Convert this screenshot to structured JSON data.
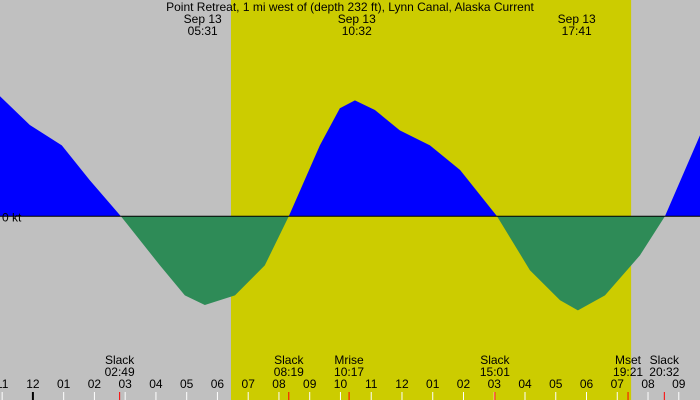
{
  "chart_data": {
    "type": "area",
    "title": "Point Retreat, 1 mi west of (depth 232 ft), Lynn Canal, Alaska Current",
    "x": [
      -1.07,
      -0.1,
      0.94,
      1.85,
      2.86,
      4.13,
      4.94,
      5.59,
      6.57,
      7.54,
      8.32,
      9.33,
      9.98,
      10.47,
      11.12,
      11.93,
      12.91,
      13.89,
      15.09,
      16.16,
      17.14,
      17.72,
      18.6,
      19.74,
      20.55,
      21.69
    ],
    "values": [
      2.0,
      1.52,
      1.18,
      0.6,
      0,
      -0.82,
      -1.32,
      -1.48,
      -1.32,
      -0.82,
      0,
      1.18,
      1.8,
      1.93,
      1.77,
      1.43,
      1.18,
      0.77,
      0,
      -0.9,
      -1.4,
      -1.57,
      -1.32,
      -0.65,
      0,
      1.35
    ],
    "flood_color": "#0000ff",
    "ebb_color": "#2e8b57",
    "background_color": "#c0c0c0",
    "daylight_color": "#cccc00",
    "daylight": [
      6.44,
      19.45
    ],
    "xlim": [
      -1.07,
      21.69
    ],
    "ylim": [
      -2.73,
      3.27
    ],
    "yticks": [
      {
        "value": 0,
        "label": "0 kt"
      }
    ],
    "xticks": [
      {
        "value": -1,
        "label": "11"
      },
      {
        "value": 0,
        "label": "12"
      },
      {
        "value": 1,
        "label": "01"
      },
      {
        "value": 2,
        "label": "02"
      },
      {
        "value": 3,
        "label": "03"
      },
      {
        "value": 4,
        "label": "04"
      },
      {
        "value": 5,
        "label": "05"
      },
      {
        "value": 6,
        "label": "06"
      },
      {
        "value": 7,
        "label": "07"
      },
      {
        "value": 8,
        "label": "08"
      },
      {
        "value": 9,
        "label": "09"
      },
      10,
      11,
      12,
      {
        "value": 13,
        "label": "01"
      },
      {
        "value": 14,
        "label": "02"
      },
      {
        "value": 15,
        "label": "03"
      },
      {
        "value": 16,
        "label": "04"
      },
      {
        "value": 17,
        "label": "05"
      },
      {
        "value": 18,
        "label": "06"
      },
      {
        "value": 19,
        "label": "07"
      },
      {
        "value": 20,
        "label": "08"
      },
      {
        "value": 21,
        "label": "09"
      }
    ],
    "top_events": [
      {
        "date": "Sep 13",
        "time": "05:31",
        "hour": 5.52
      },
      {
        "date": "Sep 13",
        "time": "10:32",
        "hour": 10.53
      },
      {
        "date": "Sep 13",
        "time": "17:41",
        "hour": 17.68
      }
    ],
    "bottom_events": [
      {
        "name": "Slack",
        "time": "02:49",
        "hour": 2.82
      },
      {
        "name": "Slack",
        "time": "08:19",
        "hour": 8.32
      },
      {
        "name": "Mrise",
        "time": "10:17",
        "hour": 10.28
      },
      {
        "name": "Slack",
        "time": "15:01",
        "hour": 15.02
      },
      {
        "name": "Mset",
        "time": "19:21",
        "hour": 19.35
      },
      {
        "name": "Slack",
        "time": "20:32",
        "hour": 20.53
      }
    ]
  }
}
